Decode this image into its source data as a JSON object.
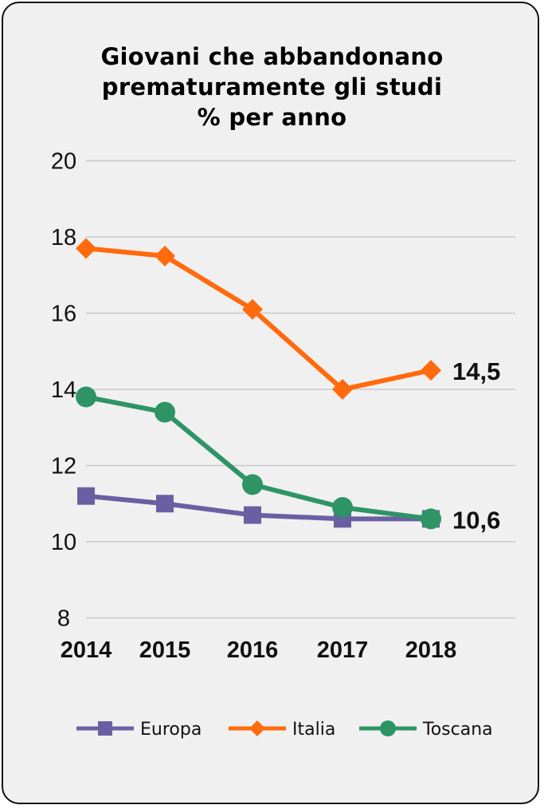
{
  "chart_data": {
    "type": "line",
    "title": [
      "Giovani che abbandonano",
      "prematuramente gli studi",
      "% per anno"
    ],
    "categories": [
      "2014",
      "2015",
      "2016",
      "2017",
      "2018"
    ],
    "yticks": [
      "20",
      "18",
      "16",
      "14",
      "12",
      "10",
      "8"
    ],
    "ylim": [
      8,
      20
    ],
    "grid": true,
    "legend_position": "bottom",
    "series": [
      {
        "name": "Europa",
        "values": [
          11.2,
          11.0,
          10.7,
          10.6,
          10.6
        ],
        "color": "#6b5fa3",
        "marker": "square"
      },
      {
        "name": "Italia",
        "values": [
          17.7,
          17.5,
          16.1,
          14.0,
          14.5
        ],
        "color": "#ff6a0d",
        "marker": "diamond"
      },
      {
        "name": "Toscana",
        "values": [
          13.8,
          13.4,
          11.5,
          10.9,
          10.6
        ],
        "color": "#2e9466",
        "marker": "circle"
      }
    ],
    "data_labels": [
      {
        "series": "Italia",
        "index": 4,
        "text": "14,5"
      },
      {
        "series": "Europa",
        "index": 4,
        "text": "10,6"
      }
    ]
  }
}
